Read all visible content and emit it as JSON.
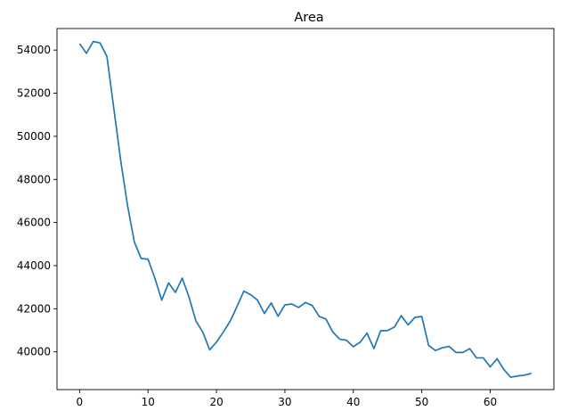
{
  "chart_data": {
    "type": "line",
    "title": "Area",
    "xlabel": "",
    "ylabel": "",
    "xlim": [
      -3.3,
      69.3
    ],
    "ylim": [
      38250,
      55000
    ],
    "x_ticks": [
      0,
      10,
      20,
      30,
      40,
      50,
      60
    ],
    "y_ticks": [
      40000,
      42000,
      44000,
      46000,
      48000,
      50000,
      52000,
      54000
    ],
    "grid": false,
    "legend": "none",
    "line_color": "#1f77b4",
    "series": [
      {
        "values": [
          54300,
          53850,
          54400,
          54330,
          53700,
          51300,
          48900,
          46800,
          45100,
          44330,
          44300,
          43420,
          42400,
          43200,
          42760,
          43420,
          42530,
          41430,
          40920,
          40100,
          40450,
          40920,
          41420,
          42100,
          42820,
          42650,
          42400,
          41780,
          42270,
          41650,
          42180,
          42220,
          42060,
          42290,
          42150,
          41650,
          41520,
          40920,
          40590,
          40540,
          40240,
          40450,
          40870,
          40150,
          40980,
          40990,
          41150,
          41680,
          41250,
          41600,
          41640,
          40300,
          40060,
          40190,
          40250,
          39970,
          39970,
          40150,
          39720,
          39720,
          39300,
          39680,
          39180,
          38820,
          38880,
          38920,
          39000
        ]
      }
    ]
  }
}
